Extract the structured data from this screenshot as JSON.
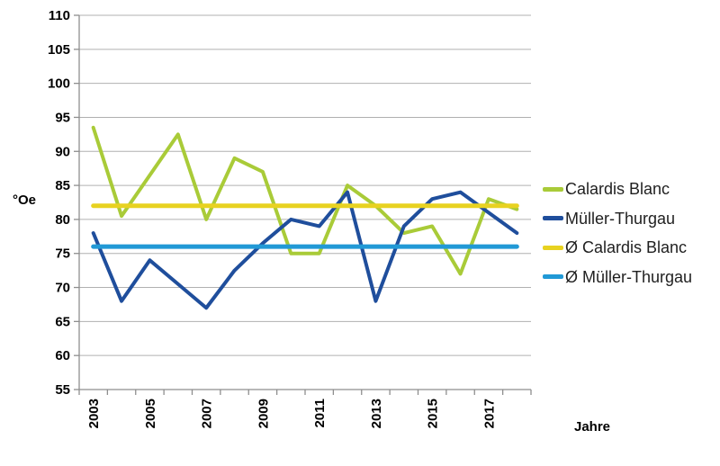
{
  "chart_data": {
    "type": "line",
    "title": "",
    "xlabel": "Jahre",
    "ylabel": "°Oe",
    "ylim": [
      55,
      110
    ],
    "ytick_step": 5,
    "grid": "horizontal",
    "legend_position": "right",
    "x": [
      2003,
      2004,
      2005,
      2006,
      2007,
      2008,
      2009,
      2010,
      2011,
      2012,
      2013,
      2014,
      2015,
      2016,
      2017,
      2018
    ],
    "x_tick_labels": [
      "2003",
      "2005",
      "2007",
      "2009",
      "2011",
      "2013",
      "2015",
      "2017"
    ],
    "series": [
      {
        "name": "Calardis Blanc",
        "color": "#a9cb38",
        "values": [
          93.5,
          80.5,
          86.5,
          92.5,
          80,
          89,
          87,
          75,
          75,
          85,
          82,
          78,
          79,
          72,
          83,
          81.5
        ]
      },
      {
        "name": "Müller-Thurgau",
        "color": "#1f4e9c",
        "values": [
          78,
          68,
          74,
          70.5,
          67,
          72.5,
          76.5,
          80,
          79,
          84,
          68,
          79,
          83,
          84,
          81,
          78
        ]
      },
      {
        "name": "Ø Calardis Blanc",
        "color": "#e8d220",
        "constant": 82
      },
      {
        "name": "Ø Müller-Thurgau",
        "color": "#2199d6",
        "constant": 76
      }
    ]
  }
}
